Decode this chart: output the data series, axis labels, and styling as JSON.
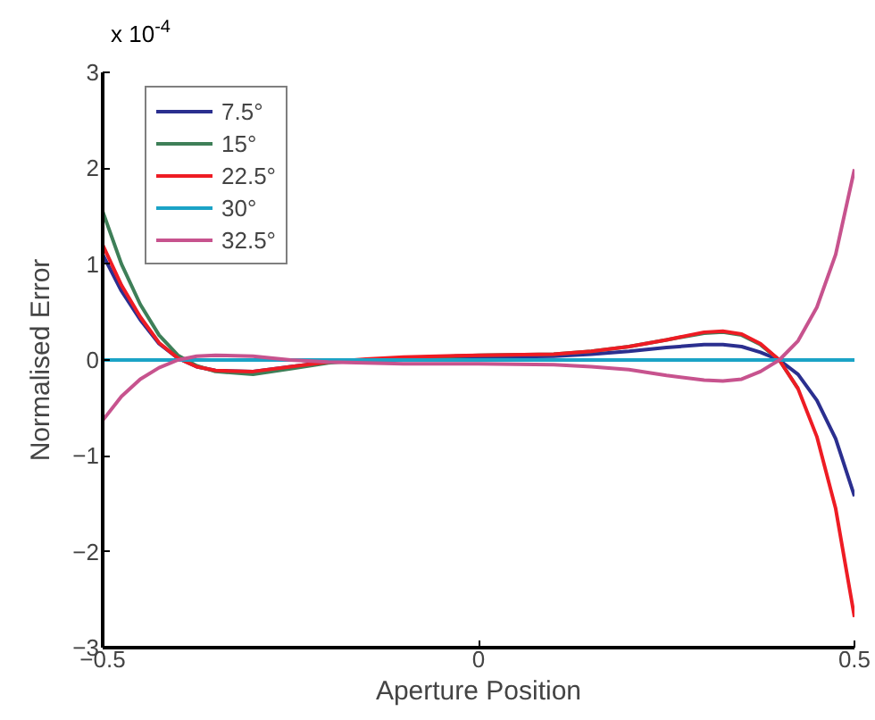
{
  "chart_data": {
    "type": "line",
    "xlabel": "Aperture Position",
    "ylabel": "Normalised Error",
    "annotations": [
      "x 10$^{-4}$"
    ],
    "xlim": [
      -0.5,
      0.5
    ],
    "ylim": [
      -3,
      3
    ],
    "xticks": [
      {
        "value": -0.5,
        "label": "−0.5"
      },
      0,
      0.5
    ],
    "yticks": [
      {
        "value": -3,
        "label": "−3"
      },
      {
        "value": -2,
        "label": "−2"
      },
      {
        "value": -1,
        "label": "−1"
      },
      0,
      1,
      2,
      3
    ],
    "grid": false,
    "legend": "top left",
    "line_style": "solid",
    "marker": "none",
    "x": [
      -0.5,
      -0.475,
      -0.45,
      -0.425,
      -0.4,
      -0.375,
      -0.35,
      -0.3,
      -0.25,
      -0.2,
      -0.15,
      -0.1,
      0,
      0.1,
      0.15,
      0.2,
      0.25,
      0.3,
      0.325,
      0.35,
      0.375,
      0.4,
      0.425,
      0.45,
      0.475,
      0.5
    ],
    "series": [
      {
        "name": "7.5°",
        "color": "#2b2f8f",
        "values": [
          1.1,
          0.72,
          0.42,
          0.17,
          0.02,
          -0.07,
          -0.11,
          -0.12,
          -0.07,
          -0.02,
          0.0,
          0.02,
          0.03,
          0.04,
          0.06,
          0.09,
          0.13,
          0.16,
          0.16,
          0.14,
          0.08,
          0.0,
          -0.15,
          -0.42,
          -0.82,
          -1.42
        ]
      },
      {
        "name": "15°",
        "color": "#3e7f58",
        "values": [
          1.55,
          1.0,
          0.58,
          0.26,
          0.05,
          -0.06,
          -0.12,
          -0.15,
          -0.09,
          -0.03,
          0.0,
          0.02,
          0.05,
          0.06,
          0.09,
          0.14,
          0.21,
          0.28,
          0.29,
          0.26,
          0.16,
          0.0,
          -0.3,
          null,
          null,
          null
        ]
      },
      {
        "name": "22.5°",
        "color": "#ee1c24",
        "values": [
          1.2,
          0.78,
          0.45,
          0.18,
          0.02,
          -0.07,
          -0.11,
          -0.12,
          -0.07,
          -0.02,
          0.01,
          0.03,
          0.05,
          0.06,
          0.09,
          0.14,
          0.21,
          0.29,
          0.3,
          0.27,
          0.17,
          0.0,
          -0.3,
          -0.8,
          -1.55,
          -2.68
        ]
      },
      {
        "name": "30°",
        "color": "#1ba3c6",
        "values": [
          0,
          0,
          0,
          0,
          0,
          0,
          0,
          0,
          0,
          0,
          0,
          0,
          0,
          0,
          0,
          0,
          0,
          0,
          0,
          0,
          0,
          0,
          0,
          0,
          0,
          0
        ]
      },
      {
        "name": "32.5°",
        "color": "#c7538e",
        "values": [
          -0.63,
          -0.38,
          -0.2,
          -0.08,
          0.0,
          0.04,
          0.05,
          0.04,
          0.0,
          -0.02,
          -0.03,
          -0.04,
          -0.04,
          -0.05,
          -0.07,
          -0.1,
          -0.16,
          -0.21,
          -0.22,
          -0.2,
          -0.12,
          0.0,
          0.2,
          0.55,
          1.1,
          1.99
        ]
      }
    ]
  }
}
